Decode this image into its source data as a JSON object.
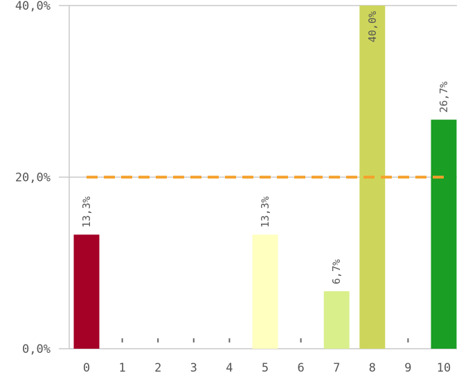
{
  "chart_data": {
    "type": "bar",
    "categories": [
      "0",
      "1",
      "2",
      "3",
      "4",
      "5",
      "6",
      "7",
      "8",
      "9",
      "10"
    ],
    "values": [
      13.3,
      0,
      0,
      0,
      0,
      13.3,
      0,
      6.7,
      40.0,
      0,
      26.7
    ],
    "data_labels": [
      "13,3%",
      "",
      "",
      "",
      "",
      "13,3%",
      "",
      "6,7%",
      "40,0%",
      "",
      "26,7%"
    ],
    "bar_colors": [
      "#a50026",
      "",
      "",
      "",
      "",
      "#ffffbf",
      "",
      "#d9ef8b",
      "#cdd65a",
      "",
      "#1a9e24"
    ],
    "ylim": [
      0,
      40
    ],
    "y_ticks": [
      {
        "value": 0,
        "label": "0,0%"
      },
      {
        "value": 20,
        "label": "20,0%"
      },
      {
        "value": 40,
        "label": "40,0%"
      }
    ],
    "reference_line": {
      "value": 20,
      "color": "#f5a02a",
      "style": "dashed"
    },
    "grid": "horizontal",
    "legend": "none",
    "title": "",
    "xlabel": "",
    "ylabel": ""
  }
}
